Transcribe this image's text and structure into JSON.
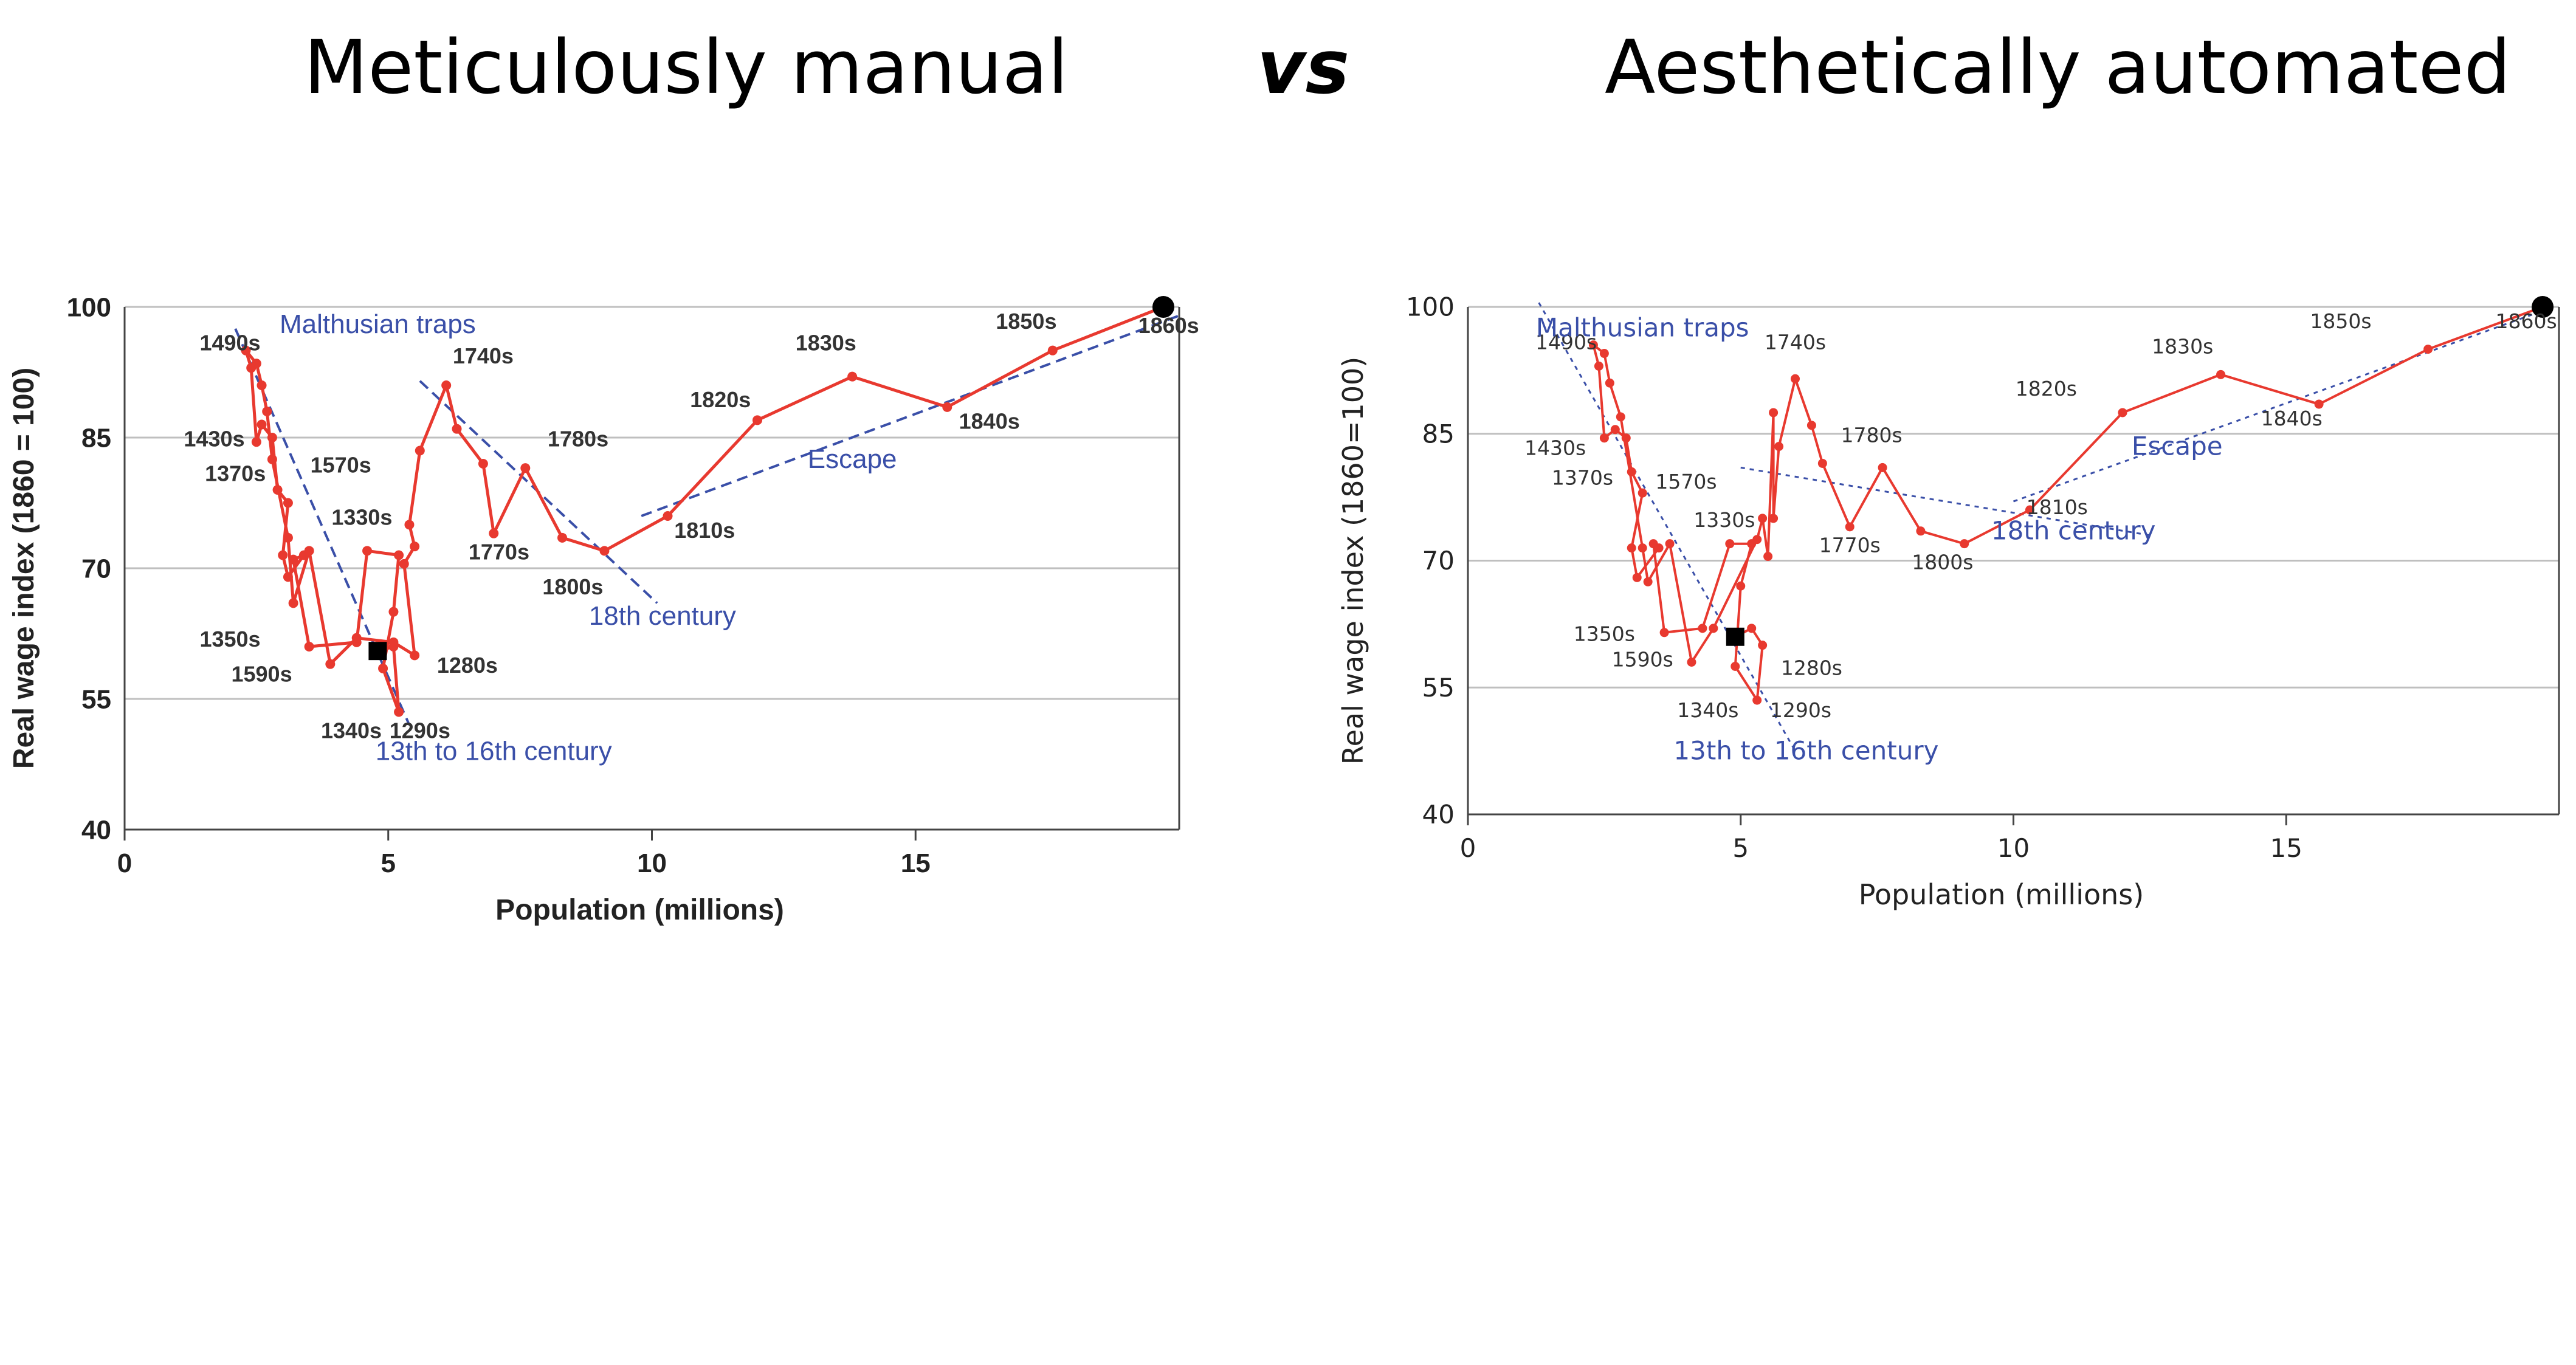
{
  "titles": {
    "left": "Meticulously manual",
    "vs": "vs",
    "right": "Aesthetically automated"
  },
  "colors": {
    "series": "#e8392f",
    "trend": "#3a4fa8",
    "annotation": "#3a4fa8",
    "grid": "#bfbfbf",
    "endpoint": "#000000"
  },
  "chart_data": [
    {
      "type": "line",
      "title": "",
      "xlabel": "Population (millions)",
      "ylabel": "Real wage index (1860 = 100)",
      "xlim": [
        0,
        20
      ],
      "ylim": [
        40,
        100
      ],
      "xticks": [
        "0",
        "5",
        "10",
        "15"
      ],
      "yticks": [
        "40",
        "55",
        "70",
        "85",
        "100"
      ],
      "grid": "horizontal",
      "series": [
        {
          "values": [
            [
              4.8,
              60.5
            ],
            [
              5.1,
              61.0
            ],
            [
              5.2,
              53.5
            ],
            [
              4.9,
              58.5
            ],
            [
              5.1,
              65.0
            ],
            [
              5.2,
              71.5
            ],
            [
              4.6,
              72.0
            ],
            [
              4.4,
              61.5
            ],
            [
              3.5,
              61.0
            ],
            [
              3.2,
              71.0
            ],
            [
              3.4,
              71.5
            ],
            [
              3.1,
              69.0
            ],
            [
              3.0,
              71.5
            ],
            [
              3.1,
              77.5
            ],
            [
              2.9,
              79.0
            ],
            [
              2.8,
              85.0
            ],
            [
              2.6,
              86.5
            ],
            [
              2.5,
              84.5
            ],
            [
              2.4,
              93.0
            ],
            [
              2.3,
              95.0
            ],
            [
              2.5,
              93.5
            ],
            [
              2.6,
              91.0
            ],
            [
              2.7,
              88.0
            ],
            [
              2.8,
              82.5
            ],
            [
              3.1,
              73.5
            ],
            [
              3.2,
              66.0
            ],
            [
              3.5,
              72.0
            ],
            [
              3.9,
              59.0
            ],
            [
              4.4,
              62.0
            ],
            [
              5.1,
              61.5
            ],
            [
              5.5,
              60.0
            ],
            [
              5.3,
              70.5
            ],
            [
              5.5,
              72.5
            ],
            [
              5.4,
              75.0
            ],
            [
              5.6,
              83.5
            ],
            [
              6.1,
              91.0
            ],
            [
              6.3,
              86.0
            ],
            [
              6.8,
              82.0
            ],
            [
              7.0,
              74.0
            ],
            [
              7.6,
              81.5
            ],
            [
              8.3,
              73.5
            ],
            [
              9.1,
              72.0
            ],
            [
              10.3,
              76.0
            ],
            [
              12.0,
              87.0
            ],
            [
              13.8,
              92.0
            ],
            [
              15.6,
              88.5
            ],
            [
              17.6,
              95.0
            ],
            [
              19.7,
              100.0
            ]
          ]
        }
      ],
      "endpoint": {
        "x": 19.7,
        "y": 100
      },
      "highlight_point": {
        "x": 4.8,
        "y": 60.5
      },
      "trend_lines": [
        {
          "label": "13th to 16th century",
          "from": [
            2.1,
            97.5
          ],
          "to": [
            5.4,
            52.0
          ]
        },
        {
          "label": "18th century",
          "from": [
            5.6,
            91.5
          ],
          "to": [
            10.1,
            66.0
          ]
        },
        {
          "label": "Escape",
          "from": [
            9.8,
            76.0
          ],
          "to": [
            20.0,
            99.0
          ]
        }
      ],
      "point_labels": [
        {
          "text": "1490s",
          "x": 2.0,
          "y": 95.0
        },
        {
          "text": "1430s",
          "x": 1.7,
          "y": 84.0
        },
        {
          "text": "1370s",
          "x": 2.1,
          "y": 80.0
        },
        {
          "text": "1570s",
          "x": 4.1,
          "y": 81.0
        },
        {
          "text": "1330s",
          "x": 4.5,
          "y": 75.0
        },
        {
          "text": "1350s",
          "x": 2.0,
          "y": 61.0
        },
        {
          "text": "1590s",
          "x": 2.6,
          "y": 57.0
        },
        {
          "text": "1340s",
          "x": 4.3,
          "y": 50.5
        },
        {
          "text": "1290s",
          "x": 5.6,
          "y": 50.5
        },
        {
          "text": "1280s",
          "x": 6.5,
          "y": 58.0
        },
        {
          "text": "1740s",
          "x": 6.8,
          "y": 93.5
        },
        {
          "text": "1780s",
          "x": 8.6,
          "y": 84.0
        },
        {
          "text": "1770s",
          "x": 7.1,
          "y": 71.0
        },
        {
          "text": "1800s",
          "x": 8.5,
          "y": 67.0
        },
        {
          "text": "1810s",
          "x": 11.0,
          "y": 73.5
        },
        {
          "text": "1820s",
          "x": 11.3,
          "y": 88.5
        },
        {
          "text": "1830s",
          "x": 13.3,
          "y": 95.0
        },
        {
          "text": "1840s",
          "x": 16.4,
          "y": 86.0
        },
        {
          "text": "1850s",
          "x": 17.1,
          "y": 97.5
        },
        {
          "text": "1860s",
          "x": 19.8,
          "y": 97.0
        }
      ],
      "annotations": [
        {
          "text": "Malthusian traps",
          "x": 4.8,
          "y": 97.0
        },
        {
          "text": "Escape",
          "x": 13.8,
          "y": 81.5
        },
        {
          "text": "18th century",
          "x": 10.2,
          "y": 63.5
        },
        {
          "text": "13th to 16th century",
          "x": 7.0,
          "y": 48.0
        }
      ]
    },
    {
      "type": "line",
      "title": "",
      "xlabel": "Population (millions)",
      "ylabel": "Real wage index (1860=100)",
      "xlim": [
        0,
        20
      ],
      "ylim": [
        40,
        100
      ],
      "xticks": [
        "0",
        "5",
        "10",
        "15"
      ],
      "yticks": [
        "40",
        "55",
        "70",
        "85",
        "100"
      ],
      "grid": "horizontal",
      "series": [
        {
          "values": [
            [
              4.9,
              61.0
            ],
            [
              5.2,
              62.0
            ],
            [
              5.4,
              60.0
            ],
            [
              5.3,
              53.5
            ],
            [
              4.9,
              57.5
            ],
            [
              5.0,
              67.0
            ],
            [
              5.2,
              72.0
            ],
            [
              4.8,
              72.0
            ],
            [
              4.3,
              62.0
            ],
            [
              3.6,
              61.5
            ],
            [
              3.4,
              72.0
            ],
            [
              3.5,
              71.5
            ],
            [
              3.1,
              68.0
            ],
            [
              3.0,
              71.5
            ],
            [
              3.2,
              78.0
            ],
            [
              3.0,
              80.5
            ],
            [
              2.9,
              84.5
            ],
            [
              2.7,
              85.5
            ],
            [
              2.5,
              84.5
            ],
            [
              2.4,
              93.0
            ],
            [
              2.3,
              95.5
            ],
            [
              2.5,
              94.5
            ],
            [
              2.6,
              91.0
            ],
            [
              2.8,
              87.0
            ],
            [
              3.2,
              71.5
            ],
            [
              3.3,
              67.5
            ],
            [
              3.7,
              72.0
            ],
            [
              4.1,
              58.0
            ],
            [
              4.5,
              62.0
            ],
            [
              5.3,
              72.5
            ],
            [
              5.4,
              75.0
            ],
            [
              5.5,
              70.5
            ],
            [
              5.6,
              87.5
            ],
            [
              5.6,
              75.0
            ],
            [
              5.7,
              83.5
            ],
            [
              6.0,
              91.5
            ],
            [
              6.3,
              86.0
            ],
            [
              6.5,
              81.5
            ],
            [
              7.0,
              74.0
            ],
            [
              7.6,
              81.0
            ],
            [
              8.3,
              73.5
            ],
            [
              9.1,
              72.0
            ],
            [
              10.3,
              76.0
            ],
            [
              12.0,
              87.5
            ],
            [
              13.8,
              92.0
            ],
            [
              15.6,
              88.5
            ],
            [
              17.6,
              95.0
            ],
            [
              19.7,
              100.0
            ]
          ]
        }
      ],
      "endpoint": {
        "x": 19.7,
        "y": 100
      },
      "highlight_point": {
        "x": 4.9,
        "y": 61.0
      },
      "trend_lines": [
        {
          "label": "13th to 16th century",
          "from": [
            1.3,
            100.5
          ],
          "to": [
            6.0,
            47.5
          ]
        },
        {
          "label": "18th century",
          "from": [
            5.0,
            81.0
          ],
          "to": [
            12.5,
            73.0
          ]
        },
        {
          "label": "Escape",
          "from": [
            10.0,
            77.0
          ],
          "to": [
            19.9,
            100.0
          ]
        }
      ],
      "point_labels": [
        {
          "text": "1490s",
          "x": 1.8,
          "y": 95.0
        },
        {
          "text": "1430s",
          "x": 1.6,
          "y": 82.5
        },
        {
          "text": "1370s",
          "x": 2.1,
          "y": 79.0
        },
        {
          "text": "1570s",
          "x": 4.0,
          "y": 78.5
        },
        {
          "text": "1330s",
          "x": 4.7,
          "y": 74.0
        },
        {
          "text": "1350s",
          "x": 2.5,
          "y": 60.5
        },
        {
          "text": "1590s",
          "x": 3.2,
          "y": 57.5
        },
        {
          "text": "1340s",
          "x": 4.4,
          "y": 51.5
        },
        {
          "text": "1290s",
          "x": 6.1,
          "y": 51.5
        },
        {
          "text": "1280s",
          "x": 6.3,
          "y": 56.5
        },
        {
          "text": "1740s",
          "x": 6.0,
          "y": 95.0
        },
        {
          "text": "1780s",
          "x": 7.4,
          "y": 84.0
        },
        {
          "text": "1770s",
          "x": 7.0,
          "y": 71.0
        },
        {
          "text": "1800s",
          "x": 8.7,
          "y": 69.0
        },
        {
          "text": "1810s",
          "x": 10.8,
          "y": 75.5
        },
        {
          "text": "1820s",
          "x": 10.6,
          "y": 89.5
        },
        {
          "text": "1830s",
          "x": 13.1,
          "y": 94.5
        },
        {
          "text": "1840s",
          "x": 15.1,
          "y": 86.0
        },
        {
          "text": "1850s",
          "x": 16.0,
          "y": 97.5
        },
        {
          "text": "1860s",
          "x": 19.4,
          "y": 97.5
        }
      ],
      "annotations": [
        {
          "text": "Malthusian traps",
          "x": 3.2,
          "y": 96.5
        },
        {
          "text": "Escape",
          "x": 13.0,
          "y": 82.5
        },
        {
          "text": "18th century",
          "x": 11.1,
          "y": 72.5
        },
        {
          "text": "13th to 16th century",
          "x": 6.2,
          "y": 46.5
        }
      ]
    }
  ]
}
